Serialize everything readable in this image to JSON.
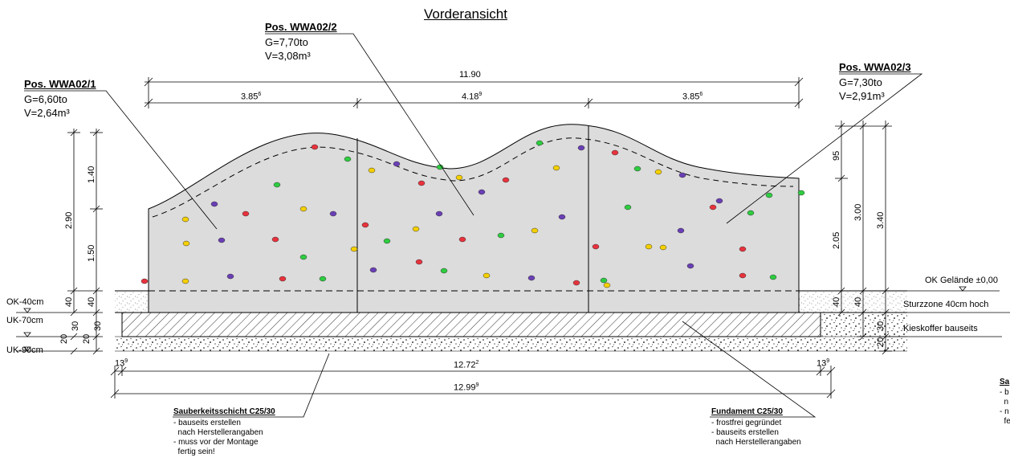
{
  "title": "Vorderansicht",
  "positions": [
    {
      "heading": "Pos. WWA02/1",
      "weight": "G=6,60to",
      "volume": "V=2,64m³"
    },
    {
      "heading": "Pos. WWA02/2",
      "weight": "G=7,70to",
      "volume": "V=3,08m³"
    },
    {
      "heading": "Pos. WWA02/3",
      "weight": "G=7,30to",
      "volume": "V=2,91m³"
    }
  ],
  "top_dimensions": {
    "total": "11.90",
    "segments": [
      "3.85",
      "4.18",
      "3.85"
    ],
    "segment_sup": [
      "6",
      "9",
      "6"
    ]
  },
  "bottom_dimensions": {
    "left_offset": "13",
    "left_offset_sup": "9",
    "middle": "12.72",
    "middle_sup": "2",
    "right_offset": "13",
    "right_offset_sup": "9",
    "total": "12.99",
    "total_sup": "9"
  },
  "left_dimensions": {
    "total_height": "2.90",
    "upper": "1.40",
    "lower": "1.50",
    "below_ground_a": "40",
    "below_ground_b": "40",
    "layer_a": "30",
    "layer_b": "30",
    "layer_c": "20",
    "layer_d": "20"
  },
  "right_dimensions": {
    "top": "95",
    "middle": "2.05",
    "height_a": "3.00",
    "height_b": "3.40",
    "below_a": "40",
    "below_b": "40",
    "below_c": "30",
    "below_d": "20"
  },
  "level_labels": {
    "ok_minus_40": "OK-40cm",
    "uk_minus_70": "UK-70cm",
    "uk_minus_90": "UK-90cm",
    "ok_gelaende": "OK Gelände ±0,00",
    "sturzzone": "Sturzzone 40cm hoch",
    "kieskoffer": "Kieskoffer bauseits"
  },
  "notes": {
    "sauberkeit": {
      "heading": "Sauberkeitsschicht C25/30",
      "lines": [
        "- bauseits erstellen",
        "  nach Herstellerangaben",
        "- muss vor der Montage",
        "  fertig sein!"
      ]
    },
    "fundament": {
      "heading": "Fundament C25/30",
      "lines": [
        "- frostfrei gegründet",
        "- bauseits erstellen",
        "  nach Herstellerangaben"
      ]
    },
    "cut_right": {
      "heading": "Sa",
      "lines": [
        "- b",
        "  n",
        "- n",
        "  fe"
      ]
    }
  },
  "colors": {
    "wall_fill": "#dcdcdc",
    "line": "#000000",
    "hold_red": "#e8323c",
    "hold_green": "#2ecc40",
    "hold_yellow": "#f5d000",
    "hold_purple": "#6a3fb5"
  }
}
